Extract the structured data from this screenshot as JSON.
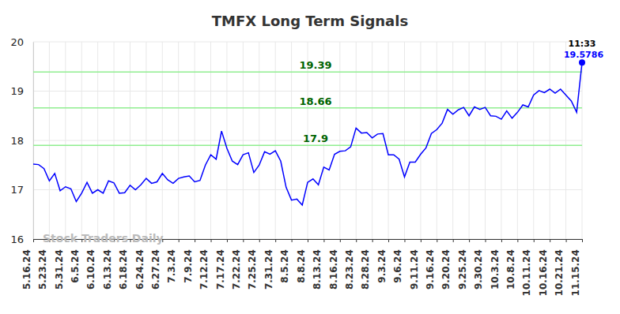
{
  "chart_data": {
    "type": "line",
    "title": "TMFX Long Term Signals",
    "categories": [
      "5.16.24",
      null,
      null,
      "5.23.24",
      null,
      null,
      "5.31.24",
      null,
      null,
      "6.5.24",
      null,
      null,
      "6.10.24",
      null,
      null,
      "6.13.24",
      null,
      null,
      "6.18.24",
      null,
      null,
      "6.24.24",
      null,
      null,
      "6.27.24",
      null,
      null,
      "7.3.24",
      null,
      null,
      "7.9.24",
      null,
      null,
      "7.12.24",
      null,
      null,
      "7.17.24",
      null,
      null,
      "7.22.24",
      null,
      null,
      "7.25.24",
      null,
      null,
      "7.31.24",
      null,
      null,
      "8.5.24",
      null,
      null,
      "8.8.24",
      null,
      null,
      "8.13.24",
      null,
      null,
      "8.16.24",
      null,
      null,
      "8.23.24",
      null,
      null,
      "8.28.24",
      null,
      null,
      "9.3.24",
      null,
      null,
      "9.6.24",
      null,
      null,
      "9.11.24",
      null,
      null,
      "9.16.24",
      null,
      null,
      "9.20.24",
      null,
      null,
      "9.25.24",
      null,
      null,
      "9.30.24",
      null,
      null,
      "10.3.24",
      null,
      null,
      "10.8.24",
      null,
      null,
      "10.11.24",
      null,
      null,
      "10.16.24",
      null,
      null,
      "10.21.24",
      null,
      null,
      "11.15.24"
    ],
    "values": [
      17.52,
      17.51,
      17.43,
      17.18,
      17.33,
      16.98,
      17.06,
      17.02,
      16.76,
      16.93,
      17.15,
      16.93,
      17.0,
      16.93,
      17.18,
      17.14,
      16.93,
      16.94,
      17.09,
      17.0,
      17.1,
      17.23,
      17.13,
      17.16,
      17.33,
      17.2,
      17.13,
      17.23,
      17.26,
      17.28,
      17.16,
      17.19,
      17.5,
      17.71,
      17.62,
      18.19,
      17.84,
      17.58,
      17.51,
      17.71,
      17.75,
      17.35,
      17.5,
      17.77,
      17.72,
      17.79,
      17.58,
      17.05,
      16.79,
      16.81,
      16.69,
      17.15,
      17.22,
      17.1,
      17.46,
      17.4,
      17.72,
      17.78,
      17.79,
      17.87,
      18.25,
      18.15,
      18.16,
      18.05,
      18.13,
      18.14,
      17.71,
      17.71,
      17.62,
      17.26,
      17.56,
      17.56,
      17.72,
      17.85,
      18.14,
      18.22,
      18.35,
      18.63,
      18.53,
      18.62,
      18.67,
      18.5,
      18.68,
      18.63,
      18.67,
      18.5,
      18.49,
      18.43,
      18.6,
      18.45,
      18.57,
      18.72,
      18.68,
      18.92,
      19.01,
      18.97,
      19.04,
      18.96,
      19.04,
      18.92,
      18.8,
      18.57,
      19.5786
    ],
    "color": "#0000ff",
    "ylim": [
      16,
      20
    ],
    "yticks": [
      16,
      17,
      18,
      19,
      20
    ],
    "grid": true,
    "signal_levels": [
      19.39,
      18.66,
      17.9
    ],
    "last_time": "11:33",
    "watermark": "Stock Traders Daily"
  }
}
